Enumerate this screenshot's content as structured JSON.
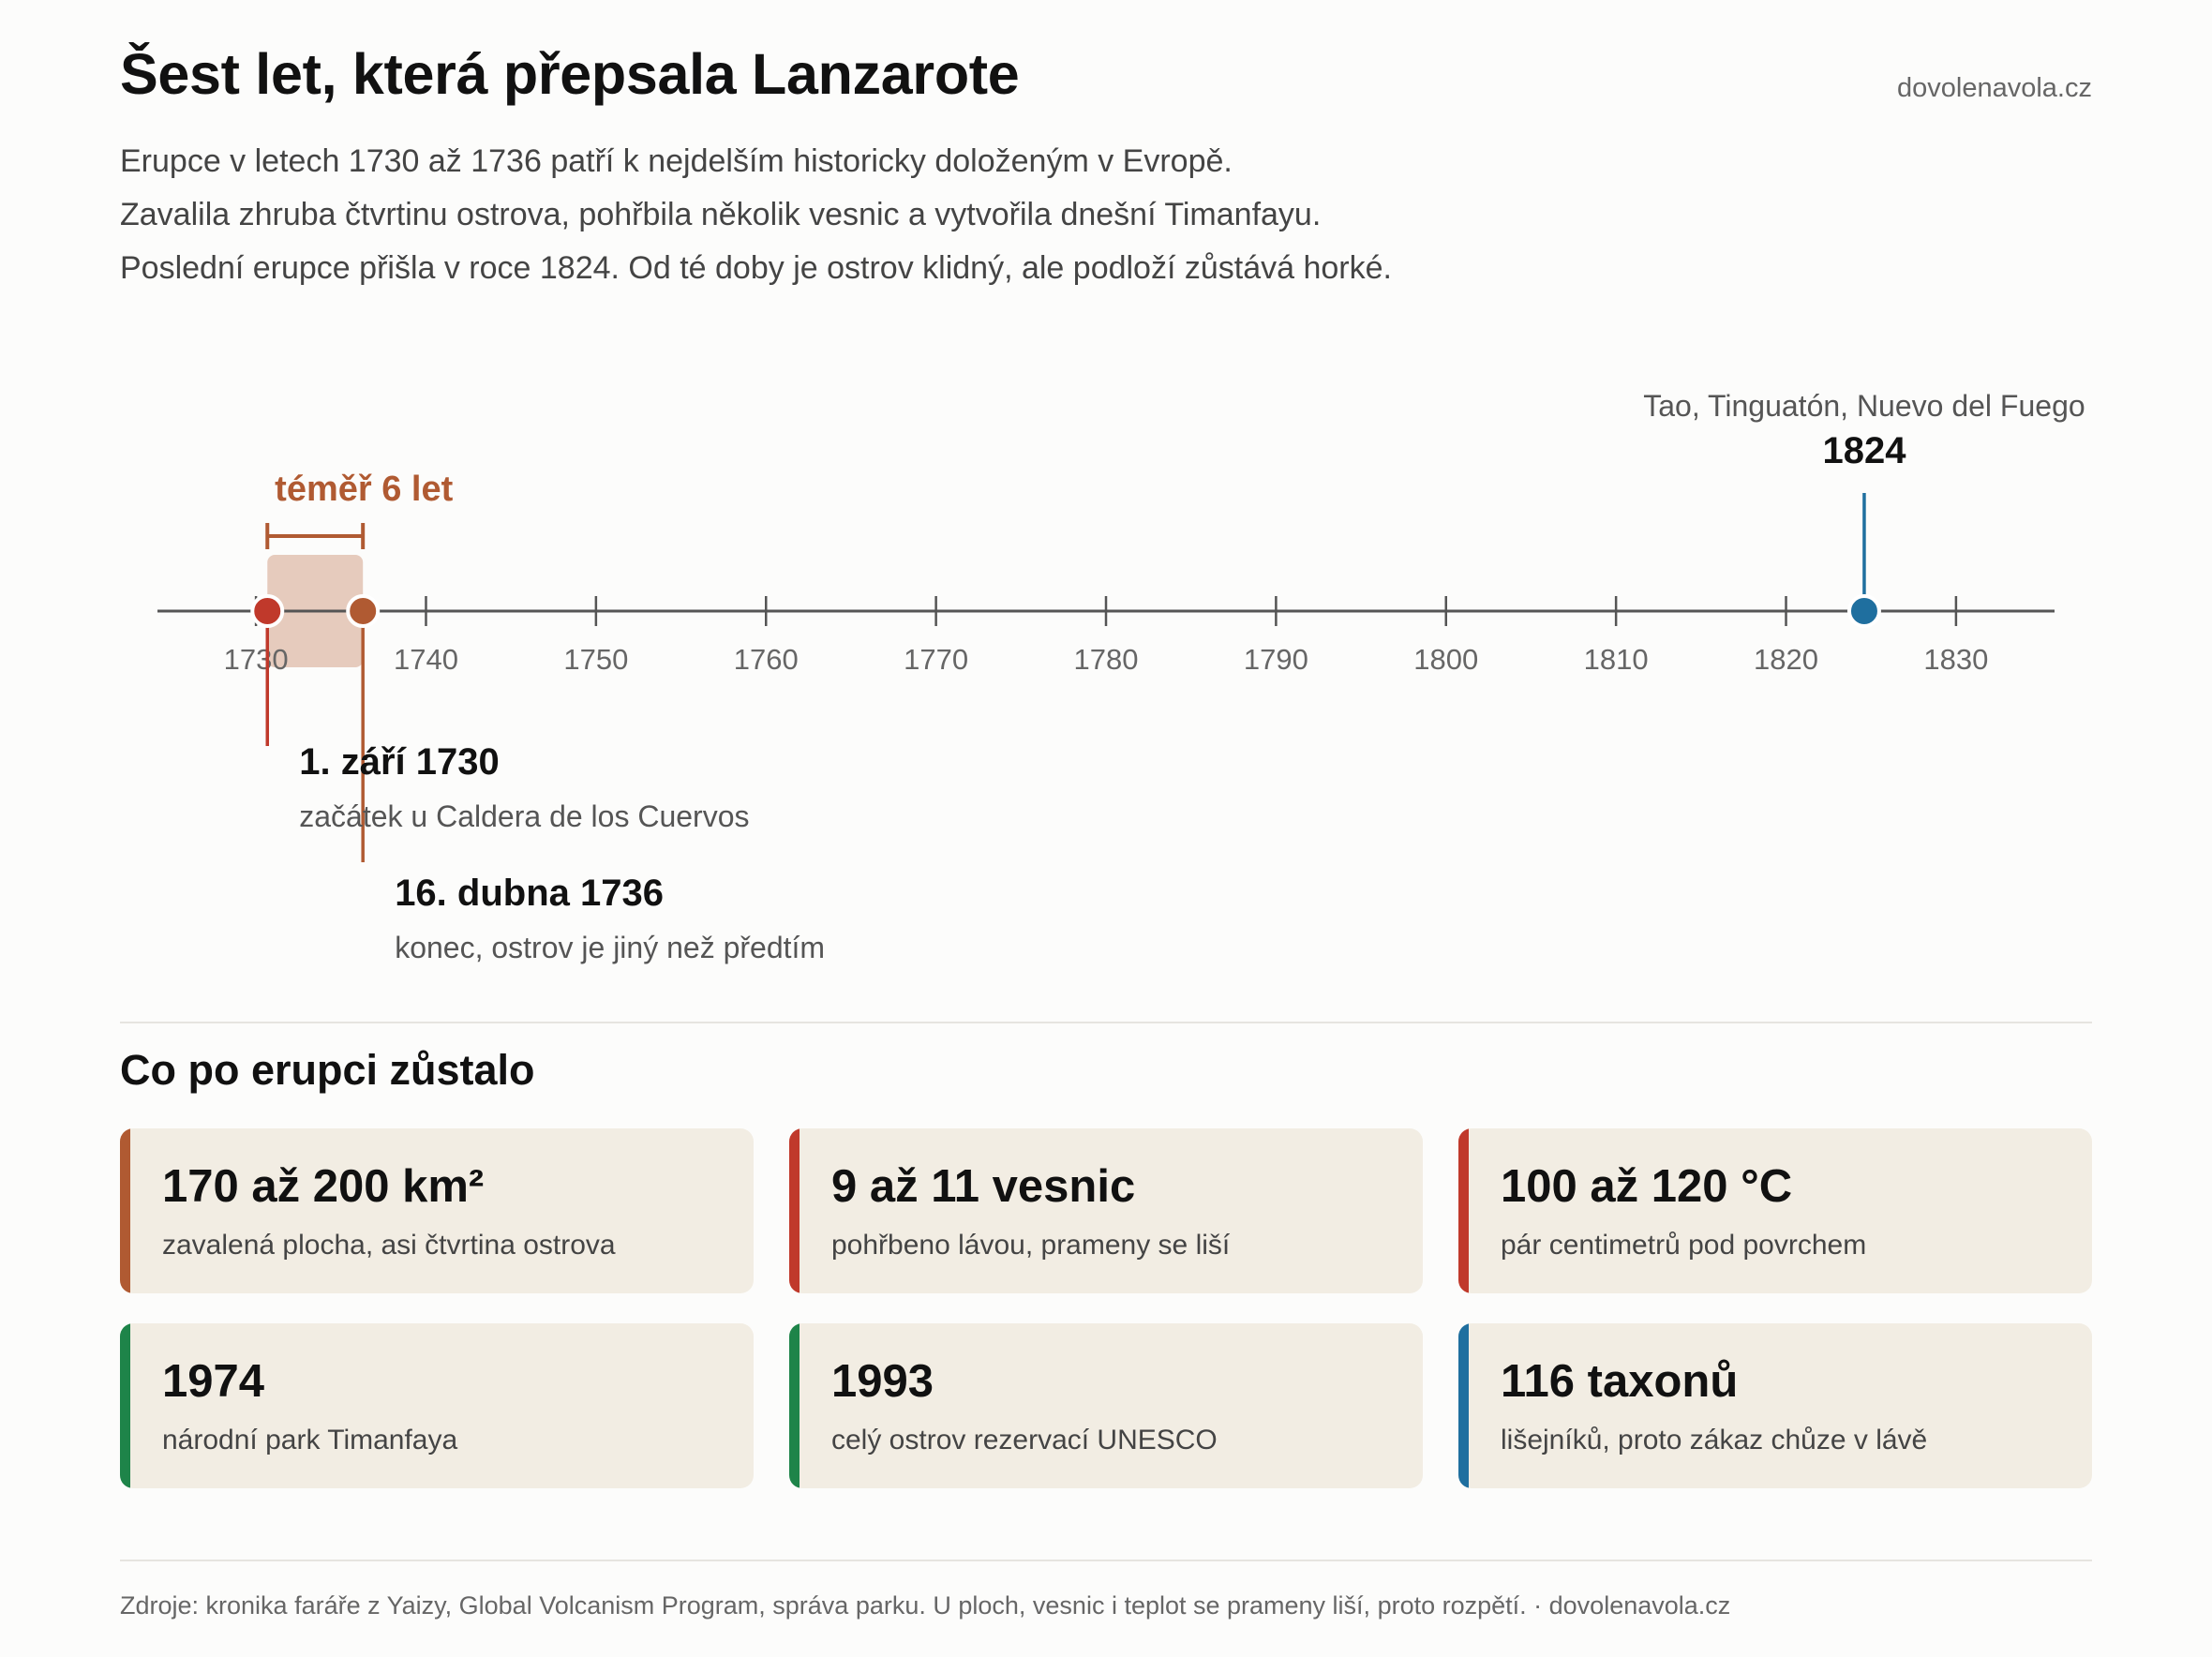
{
  "header": {
    "title": "Šest let, která přepsala Lanzarote",
    "site": "dovolenavola.cz",
    "intro": [
      "Erupce v letech 1730 až 1736 patří k nejdelším historicky doloženým v Evropě.",
      "Zavalila zhruba čtvrtinu ostrova, pohřbila několik vesnic a vytvořila dnešní Timanfayu.",
      "Poslední erupce přišla v roce 1824. Od té doby je ostrov klidný, ale podloží zůstává horké."
    ]
  },
  "chart_data": {
    "type": "timeline",
    "x_range": [
      1722,
      1838
    ],
    "ticks": [
      1730,
      1740,
      1750,
      1760,
      1770,
      1780,
      1790,
      1800,
      1810,
      1820,
      1830
    ],
    "tick_labels": [
      "1730",
      "1740",
      "1750",
      "1760",
      "1770",
      "1780",
      "1790",
      "1800",
      "1810",
      "1820",
      "1830"
    ],
    "span": {
      "start": 1730.67,
      "end": 1736.29,
      "label": "téměř 6 let",
      "color": "#b05a32"
    },
    "events": [
      {
        "year": 1730.67,
        "title": "1. září 1730",
        "subtitle": "začátek u Caldera de los Cuervos",
        "color": "#c0392b",
        "label_position": "below"
      },
      {
        "year": 1736.29,
        "title": "16. dubna 1736",
        "subtitle": "konec, ostrov je jiný než předtím",
        "color": "#b05a32",
        "label_position": "below"
      },
      {
        "year": 1824.6,
        "title": "1824",
        "subtitle": "Tao, Tinguatón, Nuevo del Fuego",
        "color": "#1f6f9f",
        "label_position": "above"
      }
    ]
  },
  "aftermath": {
    "title": "Co po erupci zůstalo",
    "cards": [
      {
        "value": "170 až 200 km²",
        "desc": "zavalená plocha, asi čtvrtina ostrova",
        "color": "#b05a32"
      },
      {
        "value": "9 až 11 vesnic",
        "desc": "pohřbeno lávou, prameny se liší",
        "color": "#c0392b"
      },
      {
        "value": "100 až 120 °C",
        "desc": "pár centimetrů pod povrchem",
        "color": "#c0392b"
      },
      {
        "value": "1974",
        "desc": "národní park Timanfaya",
        "color": "#1e8449"
      },
      {
        "value": "1993",
        "desc": "celý ostrov rezervací UNESCO",
        "color": "#1e8449"
      },
      {
        "value": "116 taxonů",
        "desc": "lišejníků, proto zákaz chůze v lávě",
        "color": "#1f6f9f"
      }
    ]
  },
  "footer": {
    "text": "Zdroje: kronika faráře z Yaizy, Global Volcanism Program, správa parku. U ploch, vesnic i teplot se prameny liší, proto rozpětí. · dovolenavola.cz"
  }
}
